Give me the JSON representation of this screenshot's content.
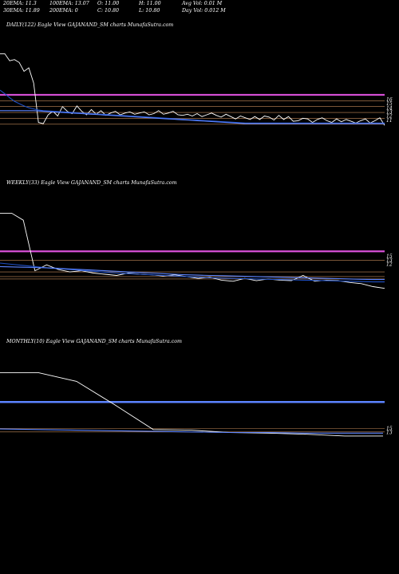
{
  "header": {
    "ema20": "20EMA: 11.3",
    "ema100": "100EMA: 13.07",
    "open": "O: 11.00",
    "high": "H: 11.00",
    "avg_vol": "Avg Vol: 0.01  M",
    "ema30": "30EMA: 11.89",
    "ema200": "200EMA: 0",
    "close": "C: 10.80",
    "low": "L: 10.80",
    "day_vol": "Day Vol: 0.012  M"
  },
  "colors": {
    "background": "#000000",
    "price": "#ffffff",
    "ema_fast": "#1e4fc4",
    "ema_slow": "#5c84ff",
    "magenta": "#d74fd7",
    "levels": "#c48a5a"
  },
  "chart_data": [
    {
      "type": "line",
      "title": "DAILY(122) Eagle   View  GAJANAND_SM charts MunafaSutra.com",
      "ylim": [
        5,
        24
      ],
      "x": [
        0,
        1,
        2,
        3,
        4,
        5,
        6,
        7,
        8,
        9,
        10,
        11,
        12,
        13,
        14,
        15,
        16,
        17,
        18,
        19,
        20,
        21,
        22,
        23,
        24,
        25,
        26,
        27,
        28,
        29,
        30,
        31,
        32,
        33,
        34,
        35,
        36,
        37,
        38,
        39,
        40,
        41,
        42,
        43,
        44,
        45,
        46,
        47,
        48,
        49,
        50,
        51,
        52,
        53,
        54,
        55,
        56,
        57,
        58,
        59,
        60,
        61,
        62,
        63,
        64,
        65,
        66,
        67,
        68,
        69,
        70,
        71,
        72,
        73,
        74,
        75,
        76,
        77,
        78,
        79,
        80
      ],
      "series": [
        {
          "role": "price",
          "values": [
            23,
            23,
            21.8,
            22,
            21.5,
            20,
            20.6,
            18,
            11.3,
            11.1,
            12.6,
            13.2,
            12.4,
            14,
            13.2,
            12.8,
            14.1,
            13.2,
            12.6,
            13.5,
            12.7,
            13.3,
            12.5,
            12.9,
            13.2,
            12.6,
            12.9,
            13.1,
            12.7,
            12.9,
            13.1,
            12.6,
            12.8,
            13.3,
            12.7,
            12.9,
            13.2,
            12.6,
            12.5,
            12.7,
            12.4,
            12.8,
            12.3,
            12.6,
            12.9,
            12.5,
            12.2,
            12.7,
            12.3,
            11.9,
            12.4,
            12.1,
            11.8,
            12.3,
            11.8,
            12.4,
            12.2,
            11.7,
            12.5,
            11.8,
            12.3,
            11.5,
            11.6,
            12,
            11.9,
            11.3,
            11.8,
            12.1,
            11.6,
            11.3,
            11.9,
            11.4,
            11.8,
            11.5,
            11.2,
            11.6,
            11.9,
            11.2,
            11.6,
            12.1,
            10.8
          ]
        },
        {
          "role": "ema-fast",
          "values": [
            16.8,
            16.2,
            15.5,
            14.9,
            14.5,
            14.1,
            13.8,
            13.6,
            13.4,
            13.3,
            13.25,
            13.2,
            13.15,
            13.1,
            13.05,
            13,
            12.95,
            12.9,
            12.85,
            12.8,
            12.75,
            12.7,
            12.65,
            12.6,
            12.55,
            12.5,
            12.45,
            12.4,
            12.35,
            12.3,
            12.25,
            12.2,
            12.15,
            12.1,
            12.05,
            12,
            11.95,
            11.9,
            11.85,
            11.8,
            11.75,
            11.7,
            11.65,
            11.6,
            11.55,
            11.5,
            11.45,
            11.4,
            11.35,
            11.3,
            11.25,
            11.2,
            11.2,
            11.2,
            11.2,
            11.2,
            11.2,
            11.2,
            11.2,
            11.2,
            11.2,
            11.2,
            11.2,
            11.2,
            11.2,
            11.2,
            11.2,
            11.2,
            11.2,
            11.2,
            11.2,
            11.2,
            11.2,
            11.2,
            11.2,
            11.2,
            11.2,
            11.2,
            11.2,
            11.2,
            11.2
          ]
        },
        {
          "role": "ema-slow",
          "values": [
            13.3,
            13.3,
            13.3,
            13.3,
            13.3,
            13.3,
            13.3,
            13.3,
            13.25,
            13.2,
            13.15,
            13.1,
            13.05,
            13,
            12.95,
            12.9,
            12.85,
            12.8,
            12.75,
            12.7,
            12.65,
            12.6,
            12.55,
            12.5,
            12.45,
            12.4,
            12.35,
            12.3,
            12.25,
            12.2,
            12.15,
            12.1,
            12.05,
            12,
            11.95,
            11.9,
            11.85,
            11.8,
            11.75,
            11.7,
            11.65,
            11.6,
            11.55,
            11.5,
            11.45,
            11.4,
            11.35,
            11.3,
            11.25,
            11.2,
            11.15,
            11.1,
            11.1,
            11.1,
            11.1,
            11.1,
            11.1,
            11.1,
            11.1,
            11.1,
            11.1,
            11.1,
            11.1,
            11.1,
            11.1,
            11.1,
            11.1,
            11.1,
            11.1,
            11.1,
            11.1,
            11.1,
            11.1,
            11.1,
            11.1,
            11.1,
            11.1,
            11.1,
            11.1,
            11.1,
            11.1
          ]
        }
      ],
      "magenta_level": 16,
      "levels": [
        15,
        14,
        13,
        12,
        11
      ],
      "level_labels": [
        "16",
        "15",
        "14",
        "13",
        "12",
        "11"
      ]
    },
    {
      "type": "line",
      "title": "WEEKLY(33) Eagle   View  GAJANAND_SM charts MunafaSutra.com",
      "ylim": [
        5,
        24
      ],
      "x": [
        0,
        1,
        2,
        3,
        4,
        5,
        6,
        7,
        8,
        9,
        10,
        11,
        12,
        13,
        14,
        15,
        16,
        17,
        18,
        19,
        20,
        21,
        22,
        23,
        24,
        25,
        26,
        27,
        28,
        29,
        30,
        31,
        32,
        33
      ],
      "series": [
        {
          "role": "price",
          "values": [
            23,
            23,
            21.8,
            13.2,
            14.2,
            13.4,
            13,
            13.2,
            12.8,
            12.6,
            12.4,
            12.8,
            12.6,
            12.5,
            12.3,
            12.5,
            12.2,
            11.9,
            12.1,
            11.6,
            11.4,
            11.9,
            11.5,
            11.8,
            11.6,
            11.5,
            12.4,
            11.4,
            11.6,
            11.5,
            11.2,
            11,
            10.5,
            10.2
          ]
        },
        {
          "role": "ema-fast",
          "values": [
            14.5,
            14.3,
            14.1,
            13.9,
            13.7,
            13.55,
            13.4,
            13.25,
            13.1,
            12.95,
            12.8,
            12.7,
            12.6,
            12.5,
            12.4,
            12.3,
            12.2,
            12.1,
            12,
            11.95,
            11.9,
            11.85,
            11.8,
            11.75,
            11.7,
            11.65,
            11.6,
            11.55,
            11.5,
            11.45,
            11.4,
            11.35,
            11.3,
            11.3
          ]
        },
        {
          "role": "ema-slow",
          "values": [
            13.9,
            13.85,
            13.8,
            13.75,
            13.7,
            13.6,
            13.5,
            13.4,
            13.3,
            13.2,
            13.1,
            13,
            12.9,
            12.8,
            12.7,
            12.6,
            12.5,
            12.45,
            12.4,
            12.35,
            12.3,
            12.25,
            12.2,
            12.15,
            12.1,
            12.05,
            12,
            11.95,
            11.9,
            11.85,
            11.8,
            11.75,
            11.7,
            11.7
          ]
        }
      ],
      "magenta_level": 16.5,
      "levels": [
        15,
        13,
        12.2,
        11.8
      ],
      "level_labels": [
        "15",
        "13",
        "12"
      ]
    },
    {
      "type": "line",
      "title": "MONTHLY(10) Eagle   View  GAJANAND_SM charts MunafaSutra.com",
      "ylim": [
        5,
        24
      ],
      "x": [
        0,
        1,
        2,
        3,
        4,
        5,
        6,
        7,
        8,
        9,
        10
      ],
      "series": [
        {
          "role": "price",
          "values": [
            23,
            23,
            21.5,
            17.5,
            13.3,
            13.2,
            12.8,
            12.7,
            12.5,
            12.2,
            12.2
          ]
        },
        {
          "role": "ema-slow",
          "values": [
            13.4,
            13.3,
            13.2,
            13.1,
            13,
            12.9,
            12.8,
            12.8,
            12.7,
            12.7,
            12.7
          ]
        }
      ],
      "blue_level": 18,
      "levels": [
        13.5,
        12.9
      ],
      "level_labels": [
        "15",
        "13"
      ]
    }
  ]
}
